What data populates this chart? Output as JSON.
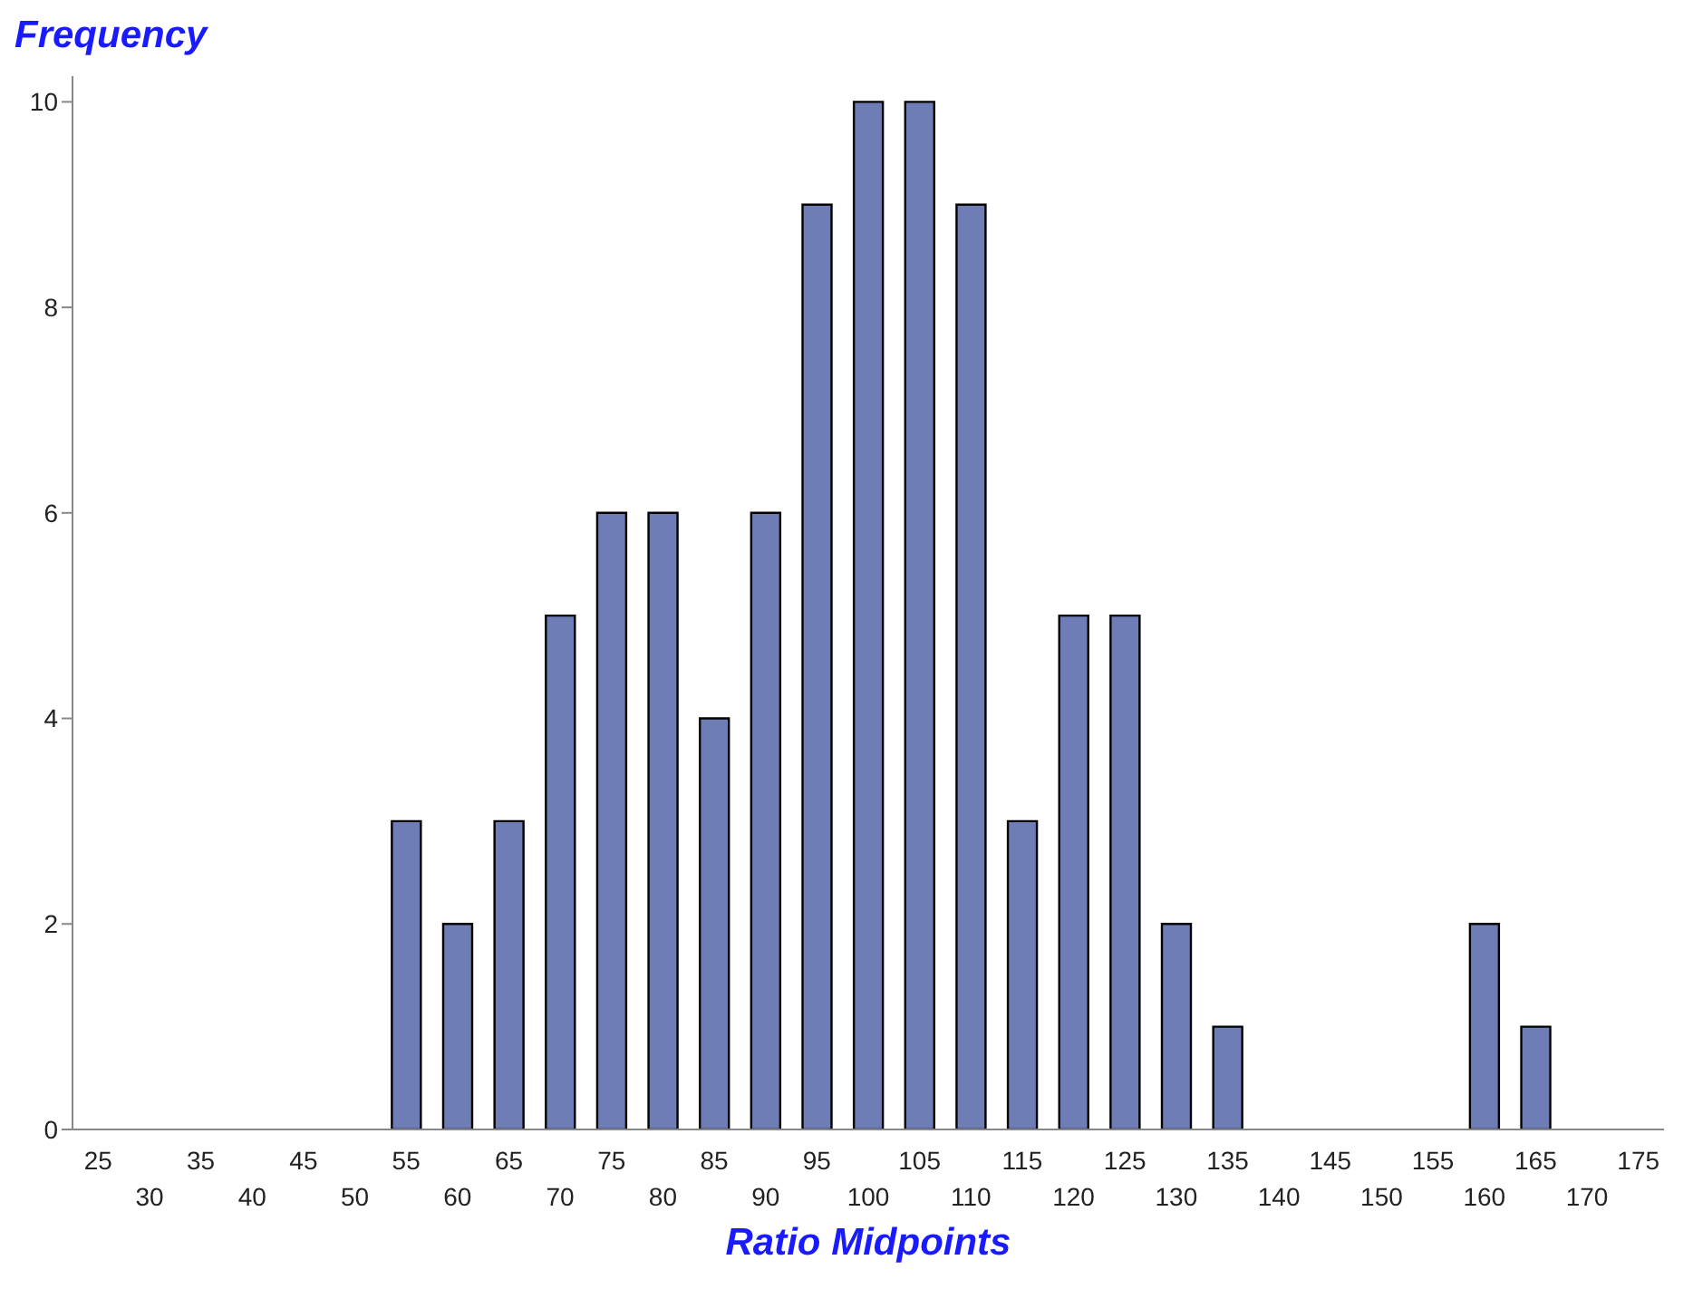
{
  "chart_data": {
    "type": "bar",
    "xlabel": "Ratio Midpoints",
    "ylabel": "Frequency",
    "categories": [
      "25",
      "30",
      "35",
      "40",
      "45",
      "50",
      "55",
      "60",
      "65",
      "70",
      "75",
      "80",
      "85",
      "90",
      "95",
      "100",
      "105",
      "110",
      "115",
      "120",
      "125",
      "130",
      "135",
      "140",
      "145",
      "150",
      "155",
      "160",
      "165",
      "170",
      "175"
    ],
    "values": [
      0,
      0,
      0,
      0,
      0,
      0,
      3,
      2,
      3,
      5,
      6,
      6,
      4,
      6,
      9,
      10,
      10,
      9,
      3,
      5,
      5,
      2,
      1,
      0,
      0,
      0,
      0,
      2,
      1,
      0,
      0
    ],
    "color": "#6e7db5",
    "ylim": [
      0,
      10.25
    ],
    "yticks": [
      0,
      2,
      4,
      6,
      8,
      10
    ],
    "grid": false
  }
}
